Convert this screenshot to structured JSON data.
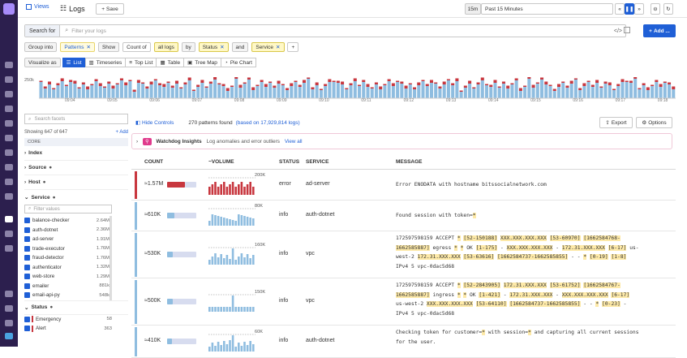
{
  "topbar": {
    "views": "Views",
    "logs": "Logs",
    "save": "Save",
    "time_short": "15m",
    "time_range": "Past 15 Minutes"
  },
  "search": {
    "label": "Search for",
    "placeholder": "Filter your logs",
    "add": "Add ..."
  },
  "groupbar": {
    "group_into": "Group into",
    "patterns": "Patterns",
    "show": "Show",
    "count_of": "Count of",
    "all_logs": "all logs",
    "by": "by",
    "status": "Status",
    "and": "and",
    "service": "Service"
  },
  "viz": {
    "label": "Visualize as",
    "tabs": [
      "List",
      "Timeseries",
      "Top List",
      "Table",
      "Tree Map",
      "Pie Chart"
    ]
  },
  "histogram": {
    "ylabel": "250k",
    "ticks": [
      "09:04",
      "09:05",
      "09:06",
      "09:07",
      "09:08",
      "09:09",
      "09:10",
      "09:11",
      "09:12",
      "09:13",
      "09:14",
      "09:15",
      "09:16",
      "09:17",
      "09:18"
    ]
  },
  "facets": {
    "search_placeholder": "Search facets",
    "showing": "Showing 647 of 647",
    "add": "Add",
    "core": "CORE",
    "groups": [
      "Index",
      "Source",
      "Host",
      "Service"
    ],
    "filter_placeholder": "Filter values",
    "services": [
      {
        "name": "balance-checker",
        "count": "2.64M"
      },
      {
        "name": "auth-dotnet",
        "count": "2.36M"
      },
      {
        "name": "ad-server",
        "count": "1.91M"
      },
      {
        "name": "trade-executor",
        "count": "1.76M"
      },
      {
        "name": "fraud-detector",
        "count": "1.76M"
      },
      {
        "name": "authenticator",
        "count": "1.32M"
      },
      {
        "name": "web-store",
        "count": "1.29M"
      },
      {
        "name": "emailer",
        "count": "881k"
      },
      {
        "name": "email-api-py",
        "count": "548k"
      }
    ],
    "status_label": "Status",
    "statuses": [
      {
        "name": "Emergency",
        "count": "58"
      },
      {
        "name": "Alert",
        "count": "363"
      }
    ]
  },
  "controls": {
    "hide": "Hide Controls",
    "found": "270 patterns found",
    "based": "(based on 17,929,814 logs)",
    "export": "Export",
    "options": "Options"
  },
  "watchdog": {
    "title": "Watchdog Insights",
    "desc": "Log anomalies and error outliers",
    "link": "View all"
  },
  "table": {
    "headers": [
      "COUNT",
      "~VOLUME",
      "STATUS",
      "SERVICE",
      "MESSAGE"
    ],
    "rows": [
      {
        "count": "≈1.57M",
        "vol": "200K",
        "status": "error",
        "service": "ad-server",
        "message": "Error ENODATA with hostname bitssocialnetwork.com",
        "fill": 0.62
      },
      {
        "count": "≈610K",
        "vol": "80K",
        "status": "info",
        "service": "auth-dotnet",
        "message": "Found session with token=*",
        "fill": 0.25
      },
      {
        "count": "≈530K",
        "vol": "160K",
        "status": "info",
        "service": "vpc",
        "message": "172597598159 ACCEPT * [52-150188] XXX.XXX.XXX.XXX [53-60970] [1662584768-1662585887] egress * * OK [1-175] - XXX.XXX.XXX.XXX - 172.31.XXX.XXX [6-17] us-west-2 172.31.XXX.XXX [53-63616] [1662584737-1662585855] - - * [0-19] [1-8] IPv4 5 vpc-0dac5d68",
        "fill": 0.2
      },
      {
        "count": "≈500K",
        "vol": "150K",
        "status": "info",
        "service": "vpc",
        "message": "172597598159 ACCEPT * [52-2843905] 172.31.XXX.XXX [53-61752] [1662584767-1662585887] ingress * * OK [1-421] - 172.31.XXX.XXX - XXX.XXX.XXX.XXX [6-17] us-west-2 XXX.XXX.XXX.XXX [53-64110] [1662584737-1662585855] - - * [0-23] - IPv4 5 vpc-0dac5d68",
        "fill": 0.19
      },
      {
        "count": "≈410K",
        "vol": "60K",
        "status": "info",
        "service": "auth-dotnet",
        "message": "Checking token for customer=* with session=* and capturing all current sessions for the user.",
        "fill": 0.16
      }
    ]
  },
  "colors": {
    "error": "#c8373f",
    "info": "#8fbde0",
    "accent": "#1f5fd6",
    "nav": "#2c1f4e"
  }
}
